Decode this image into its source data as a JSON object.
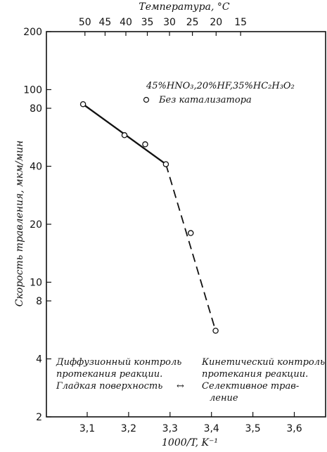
{
  "chart_data": {
    "type": "scatter",
    "xlabel": "1000/T, K⁻¹",
    "ylabel": "Скорость травления, мкм/мин",
    "top_axis_label": "Температура, °C",
    "y_scale": "log",
    "xlim": [
      3.0,
      3.7
    ],
    "ylim": [
      2,
      200
    ],
    "x_ticks": [
      3.1,
      3.2,
      3.3,
      3.4,
      3.5,
      3.6
    ],
    "x_tick_labels": [
      "3,1",
      "3,2",
      "3,3",
      "3,4",
      "3,5",
      "3,6"
    ],
    "y_ticks": [
      2,
      4,
      8,
      10,
      20,
      40,
      80,
      100,
      200
    ],
    "y_tick_labels": [
      "2",
      "4",
      "8",
      "10",
      "20",
      "40",
      "80",
      "100",
      "200"
    ],
    "temperature_ticks": [
      50,
      45,
      40,
      35,
      30,
      25,
      20,
      15
    ],
    "temperature_tick_labels": [
      "50",
      "45",
      "40",
      "35",
      "30",
      "25",
      "20",
      "15"
    ],
    "series": [
      {
        "name": "Без катализатора",
        "points": [
          {
            "x": 3.09,
            "y": 84
          },
          {
            "x": 3.19,
            "y": 58
          },
          {
            "x": 3.24,
            "y": 52
          },
          {
            "x": 3.29,
            "y": 41
          },
          {
            "x": 3.35,
            "y": 18
          },
          {
            "x": 3.41,
            "y": 5.6
          }
        ]
      }
    ],
    "fit_lines": [
      {
        "style": "solid",
        "from": {
          "x": 3.09,
          "y": 84
        },
        "to": {
          "x": 3.29,
          "y": 41
        }
      },
      {
        "style": "dashed",
        "from": {
          "x": 3.29,
          "y": 41
        },
        "to": {
          "x": 3.41,
          "y": 5.6
        }
      }
    ],
    "legend": {
      "composition": "45%HNO₃,20%HF,35%HC₂H₃O₂",
      "marker_label": "Без катализатора"
    },
    "annotations": {
      "left": [
        "Диффузионный контроль",
        "протекания реакции.",
        "Гладкая поверхность"
      ],
      "right": [
        "Кинетический контроль",
        "протекания реакции.",
        "Селективное трав-",
        "ление"
      ],
      "arrow": "↔"
    }
  }
}
